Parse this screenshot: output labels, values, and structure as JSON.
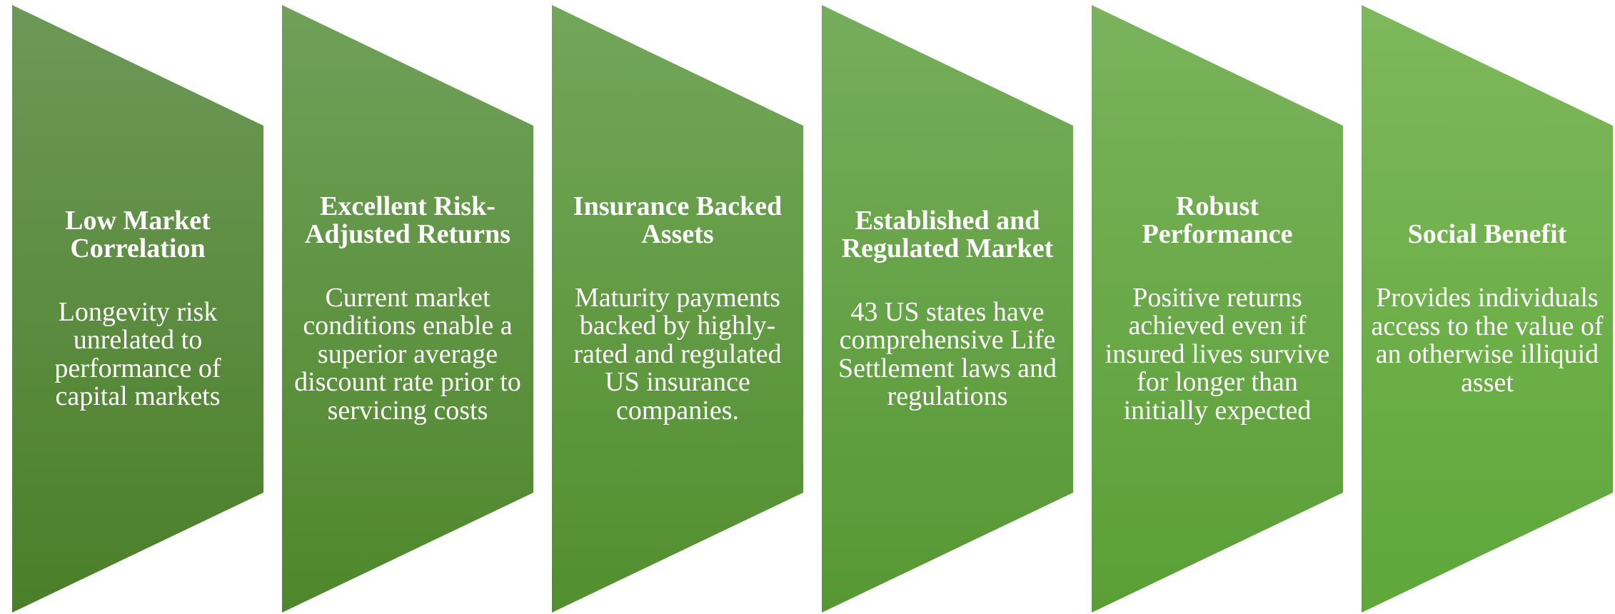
{
  "items": [
    {
      "title": "Low Market Correlation",
      "body": "Longevity risk unrelated to performance of capital markets"
    },
    {
      "title": "Excellent Risk-Adjusted Returns",
      "body": "Current market conditions enable a superior average discount rate prior to servicing costs"
    },
    {
      "title": "Insurance Backed Assets",
      "body": "Maturity payments backed by highly-rated and regulated US insurance companies."
    },
    {
      "title": "Established and Regulated Market",
      "body": "43 US states have comprehensive Life Settlement laws and regulations"
    },
    {
      "title": "Robust Performance",
      "body": "Positive returns achieved even if insured lives survive for longer than initially expected"
    },
    {
      "title": "Social Benefit",
      "body": "Provides individuals access to the value of an otherwise illiquid asset"
    }
  ]
}
